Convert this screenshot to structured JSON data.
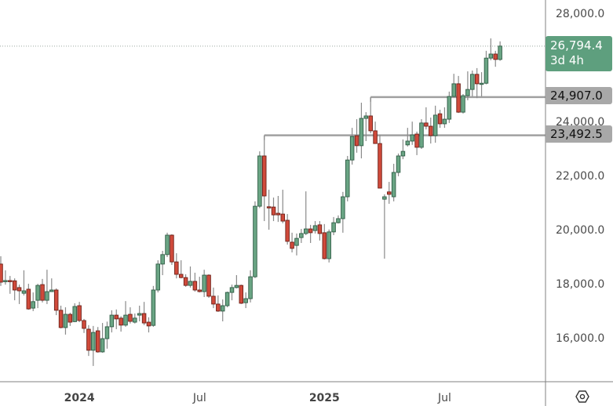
{
  "chart_data": {
    "type": "candlestick",
    "price_scale": "linear",
    "grid": false,
    "y_ticks": [
      16000,
      18000,
      20000,
      22000,
      24000,
      28000
    ],
    "y_tick_labels": [
      "16,000.0",
      "18,000.0",
      "20,000.0",
      "22,000.0",
      "24,000.0",
      "28,000.0"
    ],
    "x_tick_labels": [
      {
        "label": "2024",
        "bold": true,
        "candle_index": 17
      },
      {
        "label": "Jul",
        "bold": false,
        "candle_index": 43
      },
      {
        "label": "2025",
        "bold": true,
        "candle_index": 70
      },
      {
        "label": "Jul",
        "bold": false,
        "candle_index": 96
      }
    ],
    "candle_fields": [
      "open",
      "high",
      "low",
      "close"
    ],
    "candles": [
      [
        18730,
        19020,
        17920,
        18060
      ],
      [
        18080,
        18500,
        17970,
        18120
      ],
      [
        18120,
        18290,
        17630,
        18110
      ],
      [
        18110,
        18200,
        17390,
        17770
      ],
      [
        17860,
        17970,
        17250,
        17740
      ],
      [
        17650,
        18500,
        17570,
        17740
      ],
      [
        17800,
        18000,
        17040,
        17070
      ],
      [
        17100,
        17680,
        16990,
        17340
      ],
      [
        17390,
        18000,
        17100,
        17940
      ],
      [
        17970,
        18180,
        17310,
        17390
      ],
      [
        17390,
        18520,
        17250,
        17710
      ],
      [
        17710,
        18200,
        17700,
        17770
      ],
      [
        17770,
        17830,
        16840,
        17020
      ],
      [
        17020,
        17190,
        16350,
        16380
      ],
      [
        16380,
        17130,
        16120,
        16870
      ],
      [
        16870,
        16930,
        16440,
        16580
      ],
      [
        16600,
        17280,
        16580,
        17160
      ],
      [
        17190,
        17330,
        16580,
        16640
      ],
      [
        16640,
        16700,
        16180,
        16350
      ],
      [
        16320,
        16470,
        15330,
        15540
      ],
      [
        15540,
        16440,
        14960,
        16200
      ],
      [
        16260,
        16400,
        15450,
        15480
      ],
      [
        15480,
        16550,
        15450,
        15970
      ],
      [
        15970,
        16600,
        15600,
        16410
      ],
      [
        16410,
        17020,
        16200,
        16840
      ],
      [
        16840,
        17050,
        16320,
        16700
      ],
      [
        16730,
        16800,
        16230,
        16470
      ],
      [
        16470,
        17360,
        16410,
        16840
      ],
      [
        16870,
        17130,
        16530,
        16610
      ],
      [
        16580,
        16900,
        16530,
        16730
      ],
      [
        16840,
        17190,
        16610,
        16900
      ],
      [
        16900,
        17330,
        16470,
        16550
      ],
      [
        16580,
        16760,
        16200,
        16440
      ],
      [
        16460,
        17920,
        16410,
        17770
      ],
      [
        17770,
        18870,
        17680,
        18730
      ],
      [
        18730,
        19220,
        18320,
        19080
      ],
      [
        19080,
        19890,
        18990,
        19800
      ],
      [
        19800,
        19830,
        18700,
        18810
      ],
      [
        18810,
        19130,
        18200,
        18350
      ],
      [
        18350,
        18870,
        18200,
        18230
      ],
      [
        18230,
        18350,
        17890,
        17940
      ],
      [
        17940,
        18640,
        17860,
        18090
      ],
      [
        18090,
        18410,
        17710,
        17770
      ],
      [
        17770,
        18260,
        17680,
        17710
      ],
      [
        17710,
        18520,
        17510,
        18320
      ],
      [
        18320,
        18350,
        17480,
        17540
      ],
      [
        17540,
        17860,
        17100,
        17250
      ],
      [
        17250,
        17570,
        16960,
        16990
      ],
      [
        16990,
        17420,
        16610,
        17190
      ],
      [
        17190,
        17710,
        17130,
        17680
      ],
      [
        17680,
        17970,
        17390,
        17860
      ],
      [
        17860,
        18320,
        17830,
        17940
      ],
      [
        17940,
        17970,
        17250,
        17280
      ],
      [
        17300,
        17680,
        17100,
        17450
      ],
      [
        17450,
        18500,
        17310,
        18260
      ],
      [
        18260,
        21050,
        18210,
        20870
      ],
      [
        20870,
        22900,
        20800,
        22730
      ],
      [
        22730,
        23492.5,
        20320,
        21250
      ],
      [
        20850,
        21480,
        20000,
        20840
      ],
      [
        20840,
        21190,
        20320,
        20550
      ],
      [
        20610,
        21250,
        20290,
        20550
      ],
      [
        20580,
        21480,
        20240,
        20320
      ],
      [
        20350,
        20580,
        19450,
        19570
      ],
      [
        19540,
        19890,
        19160,
        19310
      ],
      [
        19420,
        19860,
        19050,
        19680
      ],
      [
        19710,
        20030,
        19510,
        19860
      ],
      [
        19860,
        21420,
        19800,
        20030
      ],
      [
        20030,
        20180,
        19510,
        19890
      ],
      [
        19970,
        20320,
        19860,
        20150
      ],
      [
        20180,
        20320,
        19600,
        19860
      ],
      [
        19890,
        20210,
        18900,
        18930
      ],
      [
        18930,
        20010,
        18790,
        19920
      ],
      [
        19920,
        20470,
        19800,
        20260
      ],
      [
        20260,
        20530,
        20230,
        20410
      ],
      [
        20410,
        21400,
        19890,
        21220
      ],
      [
        21220,
        22730,
        21050,
        22580
      ],
      [
        22580,
        23770,
        22410,
        23450
      ],
      [
        23480,
        24090,
        22850,
        23110
      ],
      [
        23110,
        24700,
        22640,
        24120
      ],
      [
        24120,
        24350,
        23280,
        24210
      ],
      [
        24210,
        24907,
        23570,
        23660
      ],
      [
        23660,
        24000,
        23190,
        23190
      ],
      [
        23190,
        23510,
        21540,
        21540
      ],
      [
        21130,
        21310,
        18930,
        21220
      ],
      [
        21400,
        21770,
        20960,
        21310
      ],
      [
        21220,
        22440,
        21050,
        22120
      ],
      [
        22120,
        22820,
        21980,
        22730
      ],
      [
        22730,
        23340,
        22610,
        22900
      ],
      [
        23140,
        23770,
        23080,
        23280
      ],
      [
        23280,
        24000,
        23140,
        23510
      ],
      [
        23540,
        23630,
        22760,
        23050
      ],
      [
        23050,
        24090,
        22990,
        23950
      ],
      [
        23950,
        24530,
        23710,
        23830
      ],
      [
        23830,
        24150,
        23190,
        23480
      ],
      [
        23480,
        24590,
        23220,
        24240
      ],
      [
        24290,
        24440,
        23770,
        23920
      ],
      [
        23920,
        24530,
        23770,
        24090
      ],
      [
        24090,
        25110,
        23950,
        24930
      ],
      [
        24930,
        25770,
        24900,
        25400
      ],
      [
        25400,
        25690,
        24320,
        24350
      ],
      [
        24350,
        25020,
        24300,
        24960
      ],
      [
        24960,
        25860,
        24790,
        25190
      ],
      [
        25190,
        25890,
        24930,
        25750
      ],
      [
        25750,
        25980,
        24870,
        25400
      ],
      [
        25400,
        25830,
        24930,
        25420
      ],
      [
        25420,
        26620,
        25380,
        26350
      ],
      [
        26350,
        27080,
        26270,
        26500
      ],
      [
        26500,
        26620,
        26030,
        26300
      ],
      [
        26300,
        26970,
        26250,
        26794.4
      ]
    ],
    "horizontal_levels": [
      {
        "price": 24907.0,
        "label": "24,907.0",
        "from_candle": 80
      },
      {
        "price": 23492.5,
        "label": "23,492.5",
        "from_candle": 57
      }
    ],
    "last_price": {
      "price": 26794.4,
      "label": "26,794.4",
      "countdown": "3d 4h"
    }
  },
  "colors": {
    "up_fill": "#6aa584",
    "up_border": "#2f5c45",
    "down_fill": "#d04a3b",
    "down_border": "#6e2018",
    "wick": "#8a8a8a",
    "level_line": "#a0a0a0",
    "last_tag": "#5e9f7e",
    "level_tag": "#a8a8a8",
    "axis": "#808080"
  },
  "icons": {
    "settings": "hexagon-settings-icon"
  }
}
